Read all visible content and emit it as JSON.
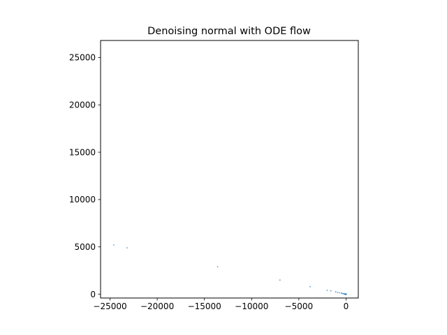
{
  "chart_data": {
    "type": "scatter",
    "title": "Denoising normal with ODE flow",
    "xlabel": "",
    "ylabel": "",
    "xlim": [
      -26000,
      1300
    ],
    "ylim": [
      -400,
      26800
    ],
    "xticks": [
      -25000,
      -20000,
      -15000,
      -10000,
      -5000,
      0
    ],
    "yticks": [
      0,
      5000,
      10000,
      15000,
      20000,
      25000
    ],
    "xtick_labels": [
      "−25000",
      "−20000",
      "−15000",
      "−10000",
      "−5000",
      "0"
    ],
    "ytick_labels": [
      "0",
      "5000",
      "10000",
      "15000",
      "20000",
      "25000"
    ],
    "grid": false,
    "point_color": "#1f77b4",
    "points": [
      {
        "x": -24600,
        "y": 5200
      },
      {
        "x": -23200,
        "y": 4900
      },
      {
        "x": -13600,
        "y": 2900
      },
      {
        "x": -7000,
        "y": 1500
      },
      {
        "x": -3800,
        "y": 800
      },
      {
        "x": -2000,
        "y": 420
      },
      {
        "x": -1600,
        "y": 360
      },
      {
        "x": -1100,
        "y": 250
      },
      {
        "x": -900,
        "y": 200
      },
      {
        "x": -700,
        "y": 160
      },
      {
        "x": -500,
        "y": 110
      },
      {
        "x": -400,
        "y": 90
      },
      {
        "x": -300,
        "y": 60
      },
      {
        "x": -200,
        "y": 40
      },
      {
        "x": -150,
        "y": 30
      },
      {
        "x": -100,
        "y": 20
      },
      {
        "x": -60,
        "y": 10
      },
      {
        "x": -30,
        "y": 5
      },
      {
        "x": 0,
        "y": 0
      },
      {
        "x": -20,
        "y": -20
      },
      {
        "x": 10,
        "y": -10
      },
      {
        "x": -80,
        "y": -30
      },
      {
        "x": 20,
        "y": 30
      }
    ]
  }
}
